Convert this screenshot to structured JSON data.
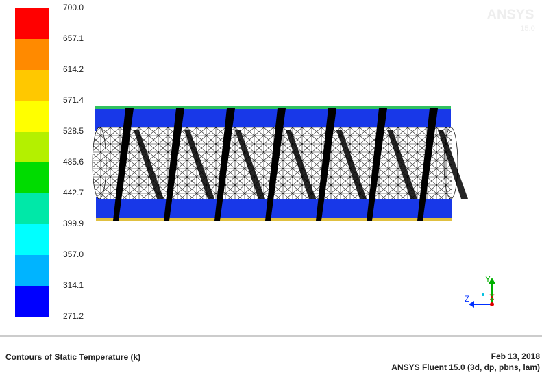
{
  "colorbar": {
    "labels": [
      "700.0",
      "657.1",
      "614.2",
      "571.4",
      "528.5",
      "485.6",
      "442.7",
      "399.9",
      "357.0",
      "314.1",
      "271.2"
    ],
    "colors": [
      "#ff0000",
      "#ff8a00",
      "#ffc800",
      "#ffff00",
      "#b4f000",
      "#00dc00",
      "#00e8a8",
      "#00ffff",
      "#00b4ff",
      "#0000ff"
    ]
  },
  "logo": {
    "name": "ANSYS",
    "version": "15.0"
  },
  "axes": {
    "y": "Y",
    "z": "Z",
    "x": "X"
  },
  "footer": {
    "title": "Contours of Static Temperature (k)",
    "date": "Feb 13, 2018",
    "version": "ANSYS Fluent 15.0 (3d, dp, pbns, lam)"
  }
}
